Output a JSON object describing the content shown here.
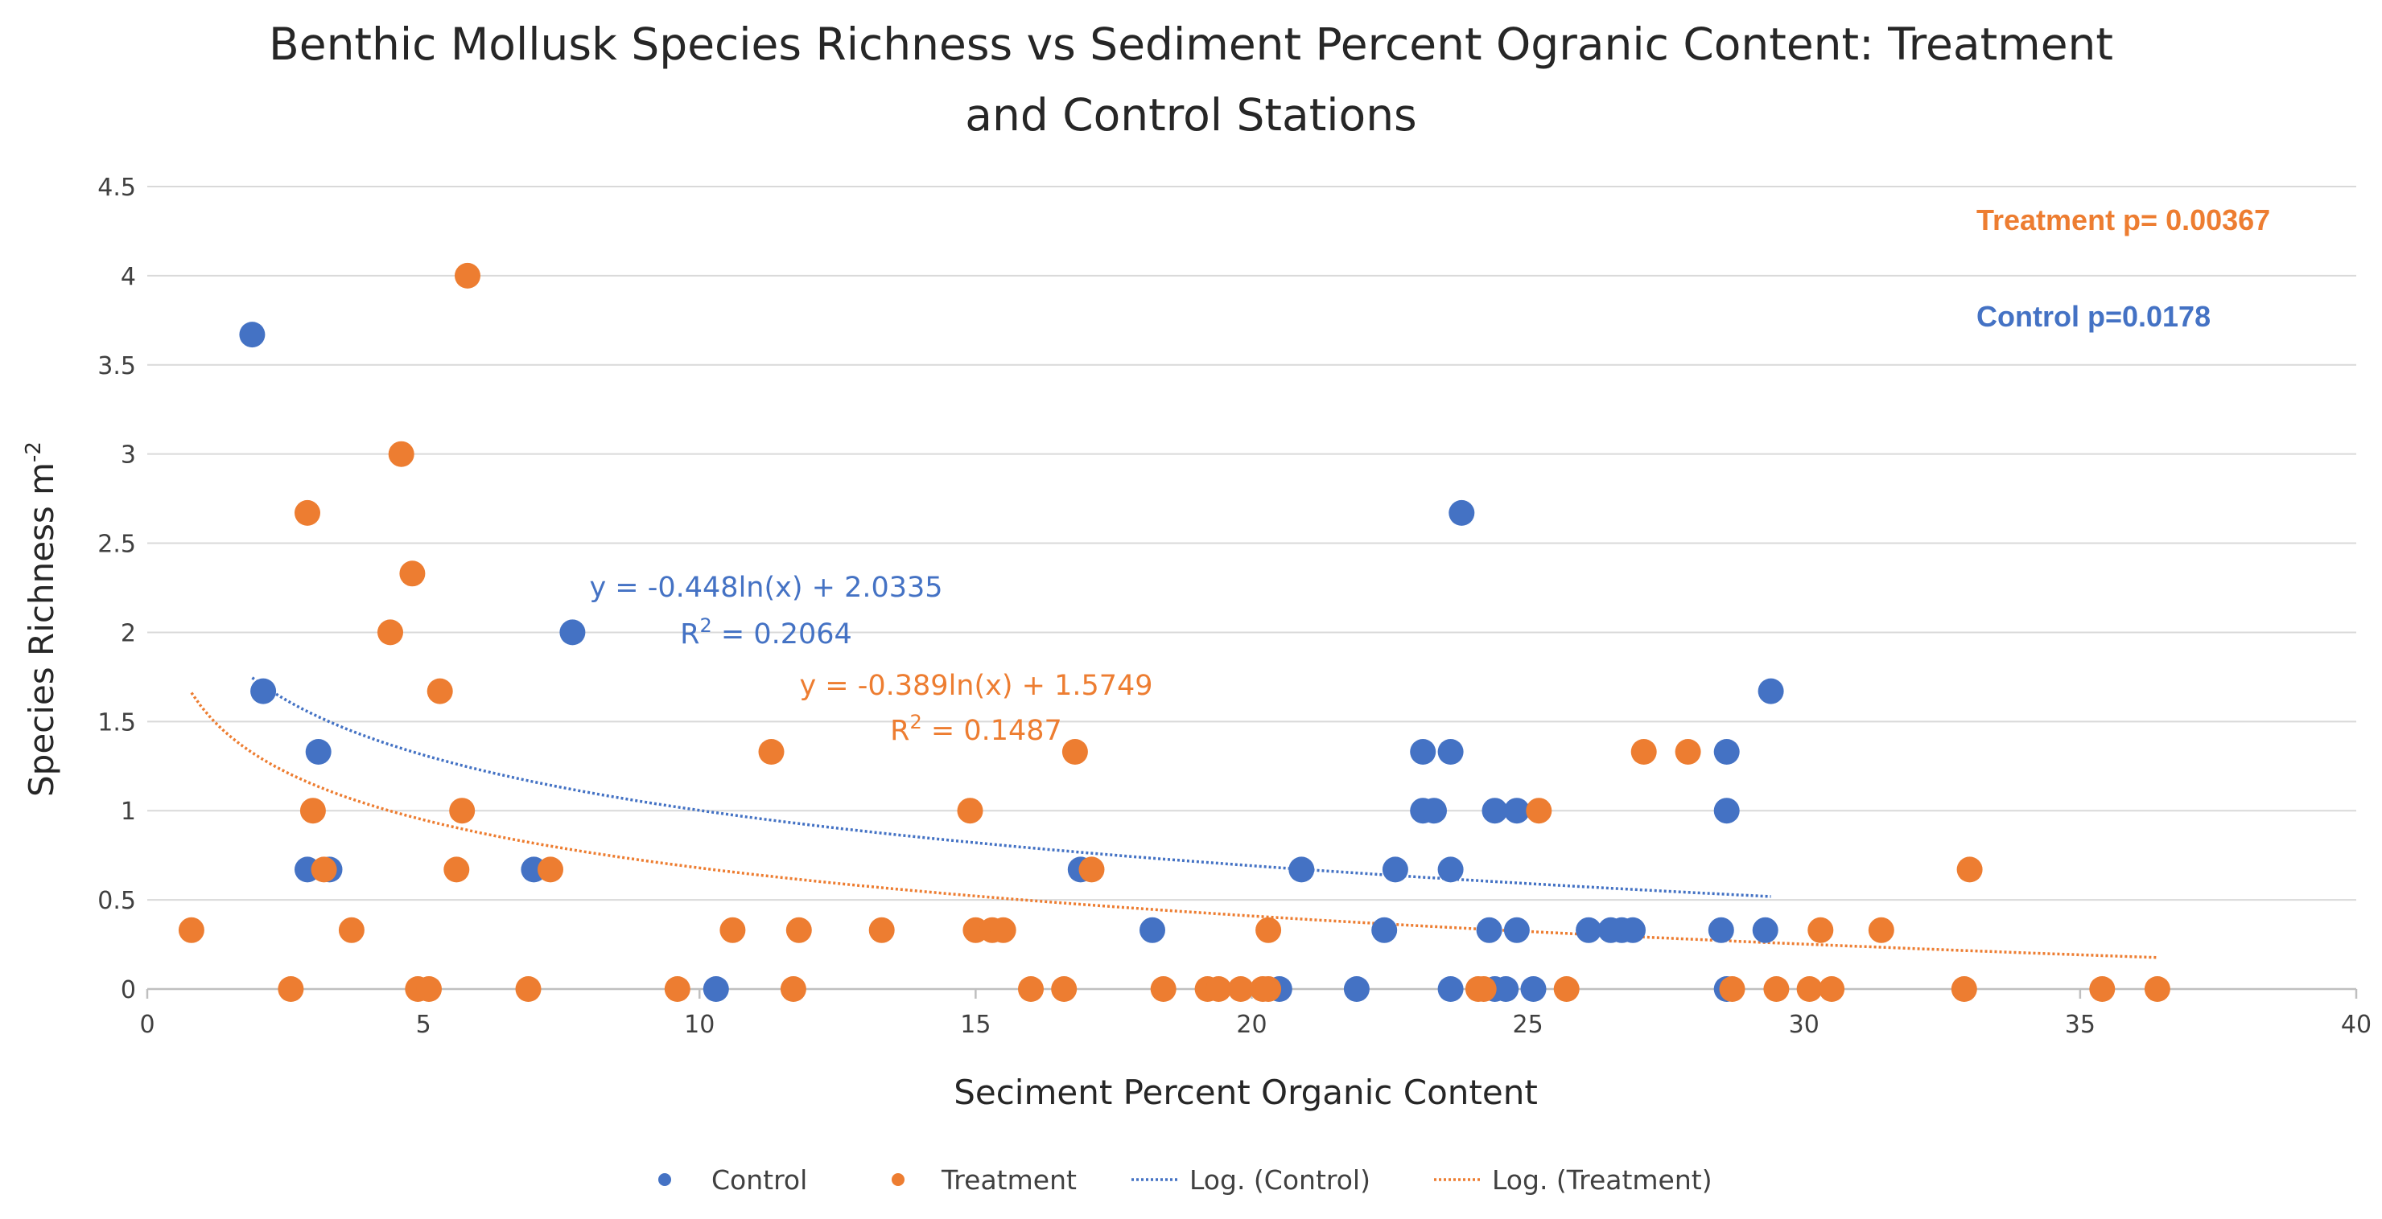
{
  "colors": {
    "control": "#4472C4",
    "treatment": "#ED7D31",
    "grid": "#D9D9D9",
    "axis": "#BFBFBF",
    "text": "#404040",
    "title": "#262626"
  },
  "chart_data": {
    "type": "scatter",
    "title_lines": [
      "Benthic Mollusk Species Richness vs Sediment Percent Ogranic Content: Treatment",
      "and Control Stations"
    ],
    "xlabel": "Seciment Percent Organic Content",
    "ylabel_main": "Species Richness m",
    "ylabel_sup": "-2",
    "xlim": [
      0,
      40
    ],
    "ylim": [
      0,
      4.5
    ],
    "x_ticks": [
      0,
      5,
      10,
      15,
      20,
      25,
      30,
      35,
      40
    ],
    "y_ticks": [
      0,
      0.5,
      1,
      1.5,
      2,
      2.5,
      3,
      3.5,
      4,
      4.5
    ],
    "x_tick_labels": [
      "0",
      "5",
      "10",
      "15",
      "20",
      "25",
      "30",
      "35",
      "40"
    ],
    "y_tick_labels": [
      "0",
      "0.5",
      "1",
      "1.5",
      "2",
      "2.5",
      "3",
      "3.5",
      "4",
      "4.5"
    ],
    "grid": "horizontal",
    "series": [
      {
        "name": "Control",
        "key": "control",
        "points": [
          [
            1.9,
            3.67
          ],
          [
            2.1,
            1.67
          ],
          [
            3.1,
            1.33
          ],
          [
            2.9,
            0.67
          ],
          [
            3.3,
            0.67
          ],
          [
            7.7,
            2.0
          ],
          [
            7.0,
            0.67
          ],
          [
            10.3,
            0.0
          ],
          [
            16.9,
            0.67
          ],
          [
            18.2,
            0.33
          ],
          [
            20.5,
            0.0
          ],
          [
            20.9,
            0.67
          ],
          [
            21.9,
            0.0
          ],
          [
            22.4,
            0.33
          ],
          [
            22.6,
            0.67
          ],
          [
            23.1,
            1.33
          ],
          [
            23.1,
            1.0
          ],
          [
            23.3,
            1.0
          ],
          [
            23.6,
            1.33
          ],
          [
            23.6,
            0.67
          ],
          [
            23.6,
            0.0
          ],
          [
            23.8,
            2.67
          ],
          [
            24.3,
            0.33
          ],
          [
            24.4,
            1.0
          ],
          [
            24.4,
            0.0
          ],
          [
            24.6,
            0.0
          ],
          [
            24.8,
            1.0
          ],
          [
            24.8,
            0.33
          ],
          [
            25.1,
            0.0
          ],
          [
            26.1,
            0.33
          ],
          [
            26.5,
            0.33
          ],
          [
            26.7,
            0.33
          ],
          [
            26.9,
            0.33
          ],
          [
            28.5,
            0.33
          ],
          [
            28.6,
            1.33
          ],
          [
            28.6,
            1.0
          ],
          [
            28.6,
            0.0
          ],
          [
            29.3,
            0.33
          ],
          [
            29.4,
            1.67
          ]
        ]
      },
      {
        "name": "Treatment",
        "key": "treatment",
        "points": [
          [
            0.8,
            0.33
          ],
          [
            2.6,
            0.0
          ],
          [
            2.9,
            2.67
          ],
          [
            3.0,
            1.0
          ],
          [
            3.2,
            0.67
          ],
          [
            3.7,
            0.33
          ],
          [
            4.4,
            2.0
          ],
          [
            4.6,
            3.0
          ],
          [
            4.8,
            2.33
          ],
          [
            4.9,
            0.0
          ],
          [
            5.1,
            0.0
          ],
          [
            5.3,
            1.67
          ],
          [
            5.6,
            0.67
          ],
          [
            5.7,
            1.0
          ],
          [
            5.8,
            4.0
          ],
          [
            6.9,
            0.0
          ],
          [
            7.3,
            0.67
          ],
          [
            9.6,
            0.0
          ],
          [
            10.6,
            0.33
          ],
          [
            11.3,
            1.33
          ],
          [
            11.7,
            0.0
          ],
          [
            11.8,
            0.33
          ],
          [
            13.3,
            0.33
          ],
          [
            14.9,
            1.0
          ],
          [
            15.0,
            0.33
          ],
          [
            15.3,
            0.33
          ],
          [
            15.5,
            0.33
          ],
          [
            16.0,
            0.0
          ],
          [
            16.6,
            0.0
          ],
          [
            16.8,
            1.33
          ],
          [
            17.1,
            0.67
          ],
          [
            18.4,
            0.0
          ],
          [
            19.2,
            0.0
          ],
          [
            19.4,
            0.0
          ],
          [
            19.8,
            0.0
          ],
          [
            20.2,
            0.0
          ],
          [
            20.3,
            0.33
          ],
          [
            20.3,
            0.0
          ],
          [
            24.1,
            0.0
          ],
          [
            24.2,
            0.0
          ],
          [
            25.2,
            1.0
          ],
          [
            25.7,
            0.0
          ],
          [
            27.1,
            1.33
          ],
          [
            27.9,
            1.33
          ],
          [
            28.7,
            0.0
          ],
          [
            29.5,
            0.0
          ],
          [
            30.1,
            0.0
          ],
          [
            30.3,
            0.33
          ],
          [
            30.5,
            0.0
          ],
          [
            31.4,
            0.33
          ],
          [
            32.9,
            0.0
          ],
          [
            33.0,
            0.67
          ],
          [
            35.4,
            0.0
          ],
          [
            36.4,
            0.0
          ]
        ]
      }
    ],
    "trendlines": [
      {
        "name": "Log. (Control)",
        "key": "control",
        "a": -0.448,
        "b": 2.0335,
        "x_range": [
          1.9,
          29.4
        ]
      },
      {
        "name": "Log. (Treatment)",
        "key": "treatment",
        "a": -0.389,
        "b": 1.5749,
        "x_range": [
          0.8,
          36.4
        ]
      }
    ],
    "annotations": {
      "control_eq": "y = -0.448ln(x) + 2.0335",
      "control_r2_main": "R",
      "control_r2_sup": "2",
      "control_r2_val": " = 0.2064",
      "treatment_eq": "y = -0.389ln(x) + 1.5749",
      "treatment_r2_main": "R",
      "treatment_r2_sup": "2",
      "treatment_r2_val": " = 0.1487",
      "treatment_p": "Treatment p= 0.00367",
      "control_p": "Control p=0.0178"
    },
    "legend": {
      "position": "bottom",
      "items": [
        "Control",
        "Treatment",
        "Log. (Control)",
        "Log. (Treatment)"
      ]
    }
  }
}
